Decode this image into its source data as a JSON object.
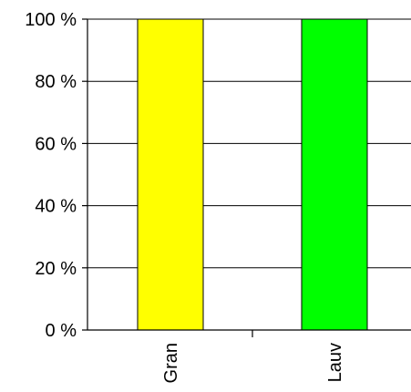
{
  "chart_data": {
    "type": "bar",
    "stacked": true,
    "percent": true,
    "categories": [
      "Gran",
      "Lauv"
    ],
    "values": [
      100,
      100
    ],
    "bar_colors": [
      "#ffff00",
      "#00ff00"
    ],
    "bar_outline_color": "#000000",
    "ylim": [
      0,
      100
    ],
    "yticks": [
      0,
      20,
      40,
      60,
      80,
      100
    ],
    "ytick_labels": [
      "0 %",
      "20 %",
      "40 %",
      "60 %",
      "80 %",
      "100 %"
    ],
    "grid": true,
    "grid_axis": "y",
    "legend": "none",
    "title": "",
    "xlabel": "",
    "ylabel": ""
  }
}
